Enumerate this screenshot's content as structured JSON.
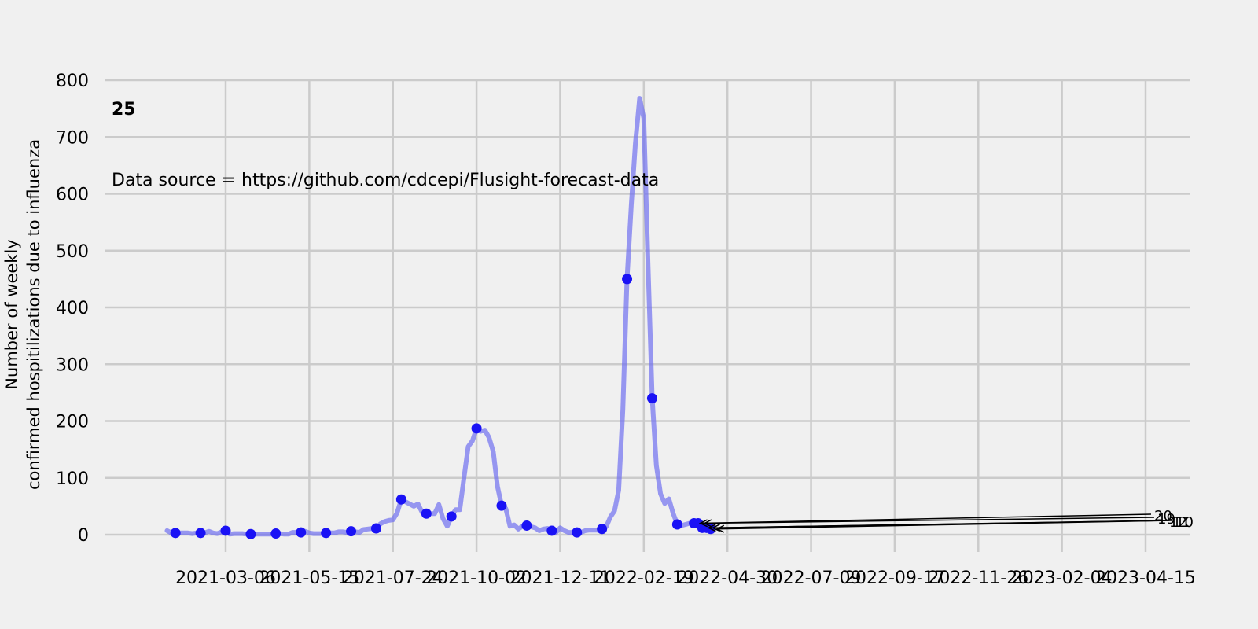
{
  "chart_data": {
    "type": "line",
    "title": "",
    "panel_label": "25",
    "source_note": "Data source = https://github.com/cdcepi/Flusight-forecast-data",
    "ylabel_line1": "Number of weekly",
    "ylabel_line2": "confirmed hospitilizations due to influenza",
    "xlabel": "",
    "ylim": [
      0,
      800
    ],
    "yticks": [
      "0",
      "100",
      "200",
      "300",
      "400",
      "500",
      "600",
      "700",
      "800"
    ],
    "xticks": [
      "2021-03-06",
      "2021-05-15",
      "2021-07-24",
      "2021-10-02",
      "2021-12-11",
      "2022-02-19",
      "2022-04-30",
      "2022-07-09",
      "2022-09-17",
      "2022-11-26",
      "2023-02-04",
      "2023-04-15"
    ],
    "grid": true,
    "colors": {
      "line": "#6f6ff0",
      "marker": "#1a12f5",
      "background": "#f0f0f0",
      "grid": "#cbcbcb"
    },
    "series": [
      {
        "values": [
          7,
          3,
          3,
          3,
          3,
          3,
          2,
          3,
          3,
          3,
          6,
          3,
          2,
          5,
          7,
          1,
          2,
          2,
          2,
          1,
          1,
          1,
          1,
          1,
          1,
          1,
          2,
          2,
          1,
          1,
          4,
          4,
          4,
          6,
          3,
          2,
          2,
          2,
          3,
          3,
          3,
          5,
          5,
          4,
          6,
          5,
          4,
          9,
          10,
          11,
          11,
          19,
          23,
          25,
          26,
          38,
          62,
          58,
          54,
          50,
          54,
          39,
          37,
          37,
          37,
          53,
          28,
          15,
          32,
          44,
          44,
          100,
          155,
          165,
          187,
          182,
          184,
          171,
          146,
          85,
          51,
          46,
          15,
          17,
          10,
          15,
          16,
          14,
          12,
          7,
          10,
          11,
          7,
          4,
          12,
          7,
          4,
          4,
          4,
          4,
          7,
          8,
          8,
          8,
          10,
          14,
          31,
          42,
          78,
          220,
          450,
          580,
          690,
          768,
          733,
          480,
          240,
          122,
          72,
          55,
          63,
          38,
          18,
          16,
          18,
          20,
          20,
          20,
          12,
          12,
          10
        ]
      }
    ],
    "x_start": "2021-01-16",
    "x_step_days": 3.5,
    "marker_stride": 6,
    "final_markers": [
      {
        "value": 20
      },
      {
        "value": 20
      },
      {
        "value": 12
      },
      {
        "value": 12
      },
      {
        "value": 10
      }
    ],
    "annotations": [
      {
        "text": "20",
        "points_to": 20
      },
      {
        "text": "19",
        "points_to": 20
      },
      {
        "text": "12",
        "points_to": 12
      },
      {
        "text": "11",
        "points_to": 12
      },
      {
        "text": "10",
        "points_to": 10
      }
    ]
  }
}
